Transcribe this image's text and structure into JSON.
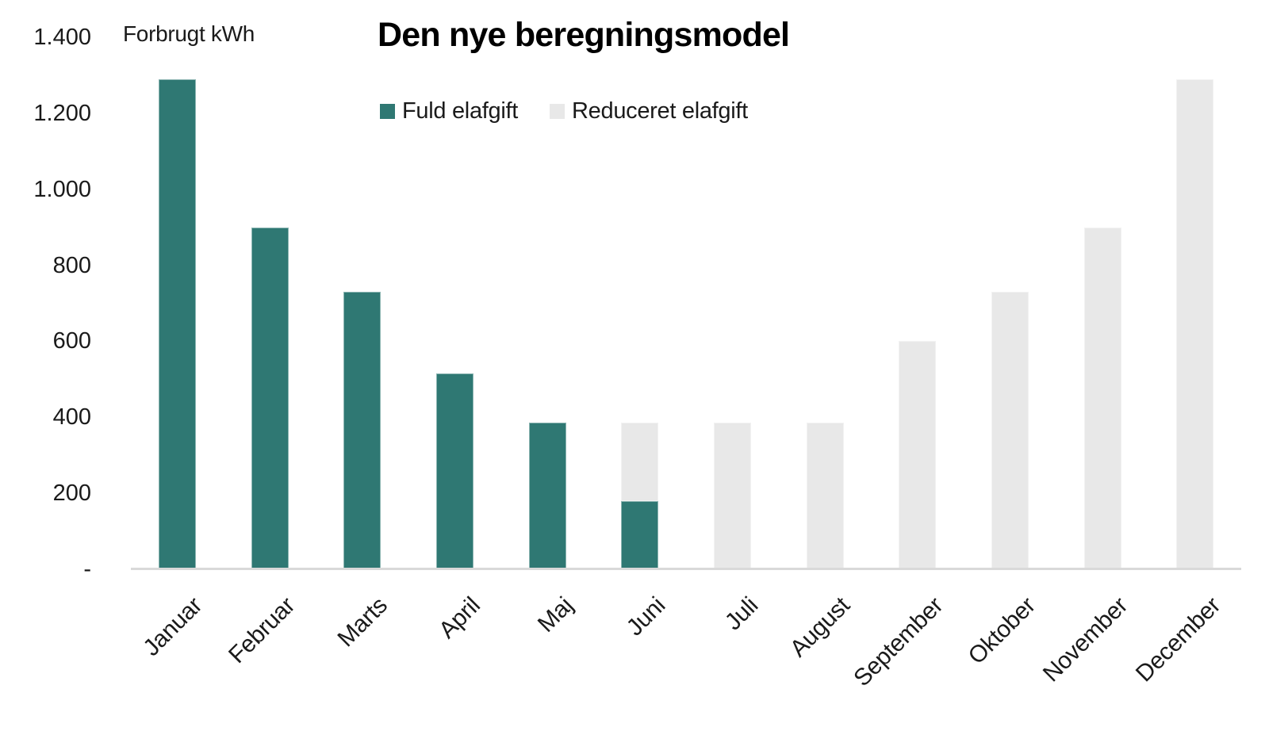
{
  "chart_data": {
    "type": "bar",
    "stacked": true,
    "title": "Den nye beregningsmodel",
    "ylabel": "Forbrugt kWh",
    "ylim": [
      0,
      1400
    ],
    "ytick_step": 200,
    "ytick_labels": [
      "-",
      "200",
      "400",
      "600",
      "800",
      "1.000",
      "1.200",
      "1.400"
    ],
    "categories": [
      "Januar",
      "Februar",
      "Marts",
      "April",
      "Maj",
      "Juni",
      "Juli",
      "August",
      "September",
      "Oktober",
      "November",
      "December"
    ],
    "series": [
      {
        "name": "Fuld elafgift",
        "color": "#2F7873",
        "values": [
          1290,
          900,
          730,
          515,
          385,
          180,
          0,
          0,
          0,
          0,
          0,
          0
        ]
      },
      {
        "name": "Reduceret elafgift",
        "color": "#E8E8E8",
        "values": [
          0,
          0,
          0,
          0,
          0,
          205,
          385,
          385,
          600,
          730,
          900,
          1290
        ]
      }
    ],
    "legend_position": "top-center",
    "grid": false,
    "axis_line_color": "#D9D9D9",
    "text_color": "#1A1A1A"
  }
}
